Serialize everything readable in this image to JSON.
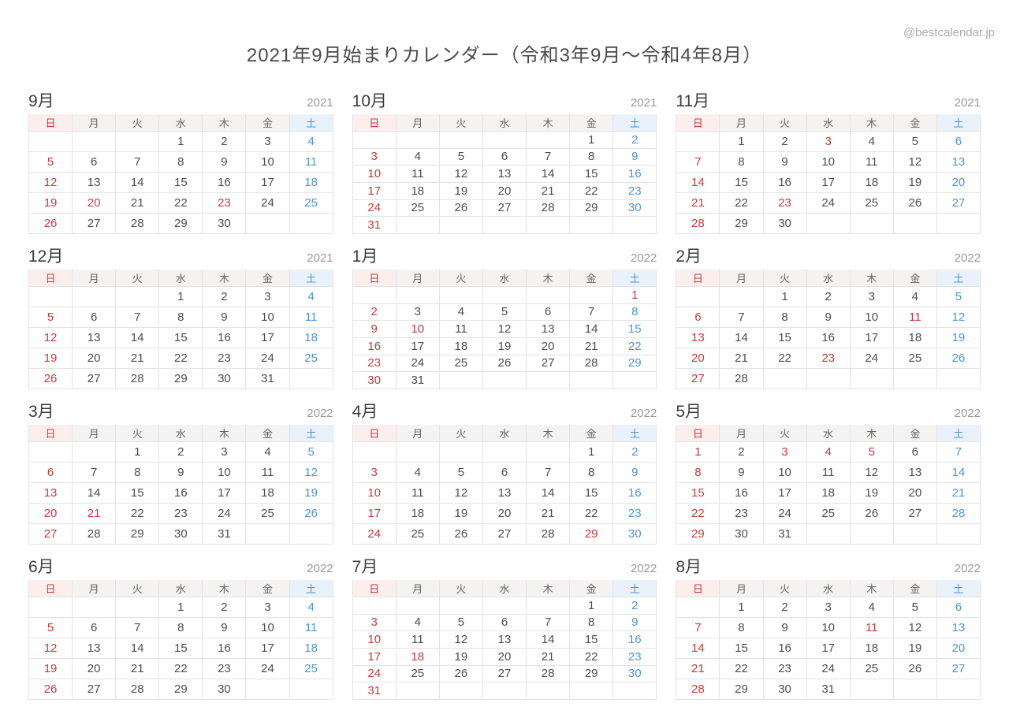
{
  "page": {
    "title": "2021年9月始まりカレンダー（令和3年9月～令和4年8月）",
    "watermark": "@bestcalendar.jp"
  },
  "weekday_headers": [
    "日",
    "月",
    "火",
    "水",
    "木",
    "金",
    "土"
  ],
  "colors": {
    "holiday_sunday_text": "#c43c3c",
    "saturday_text": "#4d94d6",
    "sunday_header_bg": "#fdeeee",
    "saturday_header_bg": "#e9f1fb",
    "weekday_header_bg": "#f5f3f1",
    "date_text": "#4d4d4d",
    "weekday_header_text": "#666666",
    "cell_border": "#e3e3e3"
  },
  "months": [
    {
      "name": "9月",
      "year": "2021",
      "weeks": [
        [
          "",
          "",
          "",
          1,
          2,
          3,
          4
        ],
        [
          5,
          6,
          7,
          8,
          9,
          10,
          11
        ],
        [
          12,
          13,
          14,
          15,
          16,
          17,
          18
        ],
        [
          19,
          20,
          21,
          22,
          23,
          24,
          25
        ],
        [
          26,
          27,
          28,
          29,
          30,
          "",
          ""
        ]
      ],
      "red_days": [
        5,
        12,
        19,
        20,
        23,
        26
      ],
      "blue_days": [
        4,
        11,
        18,
        25
      ]
    },
    {
      "name": "10月",
      "year": "2021",
      "weeks": [
        [
          "",
          "",
          "",
          "",
          "",
          1,
          2
        ],
        [
          3,
          4,
          5,
          6,
          7,
          8,
          9
        ],
        [
          10,
          11,
          12,
          13,
          14,
          15,
          16
        ],
        [
          17,
          18,
          19,
          20,
          21,
          22,
          23
        ],
        [
          24,
          25,
          26,
          27,
          28,
          29,
          30
        ],
        [
          31,
          "",
          "",
          "",
          "",
          "",
          ""
        ]
      ],
      "red_days": [
        3,
        10,
        17,
        24,
        31
      ],
      "blue_days": [
        2,
        9,
        16,
        23,
        30
      ]
    },
    {
      "name": "11月",
      "year": "2021",
      "weeks": [
        [
          "",
          1,
          2,
          3,
          4,
          5,
          6
        ],
        [
          7,
          8,
          9,
          10,
          11,
          12,
          13
        ],
        [
          14,
          15,
          16,
          17,
          18,
          19,
          20
        ],
        [
          21,
          22,
          23,
          24,
          25,
          26,
          27
        ],
        [
          28,
          29,
          30,
          "",
          "",
          "",
          ""
        ]
      ],
      "red_days": [
        3,
        7,
        14,
        21,
        23,
        28
      ],
      "blue_days": [
        6,
        13,
        20,
        27
      ]
    },
    {
      "name": "12月",
      "year": "2021",
      "weeks": [
        [
          "",
          "",
          "",
          1,
          2,
          3,
          4
        ],
        [
          5,
          6,
          7,
          8,
          9,
          10,
          11
        ],
        [
          12,
          13,
          14,
          15,
          16,
          17,
          18
        ],
        [
          19,
          20,
          21,
          22,
          23,
          24,
          25
        ],
        [
          26,
          27,
          28,
          29,
          30,
          31,
          ""
        ]
      ],
      "red_days": [
        5,
        12,
        19,
        26
      ],
      "blue_days": [
        4,
        11,
        18,
        25
      ]
    },
    {
      "name": "1月",
      "year": "2022",
      "weeks": [
        [
          "",
          "",
          "",
          "",
          "",
          "",
          1
        ],
        [
          2,
          3,
          4,
          5,
          6,
          7,
          8
        ],
        [
          9,
          10,
          11,
          12,
          13,
          14,
          15
        ],
        [
          16,
          17,
          18,
          19,
          20,
          21,
          22
        ],
        [
          23,
          24,
          25,
          26,
          27,
          28,
          29
        ],
        [
          30,
          31,
          "",
          "",
          "",
          "",
          ""
        ]
      ],
      "red_days": [
        1,
        2,
        9,
        10,
        16,
        23,
        30
      ],
      "blue_days": [
        8,
        15,
        22,
        29
      ]
    },
    {
      "name": "2月",
      "year": "2022",
      "weeks": [
        [
          "",
          "",
          1,
          2,
          3,
          4,
          5
        ],
        [
          6,
          7,
          8,
          9,
          10,
          11,
          12
        ],
        [
          13,
          14,
          15,
          16,
          17,
          18,
          19
        ],
        [
          20,
          21,
          22,
          23,
          24,
          25,
          26
        ],
        [
          27,
          28,
          "",
          "",
          "",
          "",
          ""
        ]
      ],
      "red_days": [
        6,
        11,
        13,
        20,
        23,
        27
      ],
      "blue_days": [
        5,
        12,
        19,
        26
      ]
    },
    {
      "name": "3月",
      "year": "2022",
      "weeks": [
        [
          "",
          "",
          1,
          2,
          3,
          4,
          5
        ],
        [
          6,
          7,
          8,
          9,
          10,
          11,
          12
        ],
        [
          13,
          14,
          15,
          16,
          17,
          18,
          19
        ],
        [
          20,
          21,
          22,
          23,
          24,
          25,
          26
        ],
        [
          27,
          28,
          29,
          30,
          31,
          "",
          ""
        ]
      ],
      "red_days": [
        6,
        13,
        20,
        21,
        27
      ],
      "blue_days": [
        5,
        12,
        19,
        26
      ]
    },
    {
      "name": "4月",
      "year": "2022",
      "weeks": [
        [
          "",
          "",
          "",
          "",
          "",
          1,
          2
        ],
        [
          3,
          4,
          5,
          6,
          7,
          8,
          9
        ],
        [
          10,
          11,
          12,
          13,
          14,
          15,
          16
        ],
        [
          17,
          18,
          19,
          20,
          21,
          22,
          23
        ],
        [
          24,
          25,
          26,
          27,
          28,
          29,
          30
        ]
      ],
      "red_days": [
        3,
        10,
        17,
        24,
        29
      ],
      "blue_days": [
        2,
        9,
        16,
        23,
        30
      ]
    },
    {
      "name": "5月",
      "year": "2022",
      "weeks": [
        [
          1,
          2,
          3,
          4,
          5,
          6,
          7
        ],
        [
          8,
          9,
          10,
          11,
          12,
          13,
          14
        ],
        [
          15,
          16,
          17,
          18,
          19,
          20,
          21
        ],
        [
          22,
          23,
          24,
          25,
          26,
          27,
          28
        ],
        [
          29,
          30,
          31,
          "",
          "",
          "",
          ""
        ]
      ],
      "red_days": [
        1,
        3,
        4,
        5,
        8,
        15,
        22,
        29
      ],
      "blue_days": [
        7,
        14,
        21,
        28
      ]
    },
    {
      "name": "6月",
      "year": "2022",
      "weeks": [
        [
          "",
          "",
          "",
          1,
          2,
          3,
          4
        ],
        [
          5,
          6,
          7,
          8,
          9,
          10,
          11
        ],
        [
          12,
          13,
          14,
          15,
          16,
          17,
          18
        ],
        [
          19,
          20,
          21,
          22,
          23,
          24,
          25
        ],
        [
          26,
          27,
          28,
          29,
          30,
          "",
          ""
        ]
      ],
      "red_days": [
        5,
        12,
        19,
        26
      ],
      "blue_days": [
        4,
        11,
        18,
        25
      ]
    },
    {
      "name": "7月",
      "year": "2022",
      "weeks": [
        [
          "",
          "",
          "",
          "",
          "",
          1,
          2
        ],
        [
          3,
          4,
          5,
          6,
          7,
          8,
          9
        ],
        [
          10,
          11,
          12,
          13,
          14,
          15,
          16
        ],
        [
          17,
          18,
          19,
          20,
          21,
          22,
          23
        ],
        [
          24,
          25,
          26,
          27,
          28,
          29,
          30
        ],
        [
          31,
          "",
          "",
          "",
          "",
          "",
          ""
        ]
      ],
      "red_days": [
        3,
        10,
        17,
        18,
        24,
        31
      ],
      "blue_days": [
        2,
        9,
        16,
        23,
        30
      ]
    },
    {
      "name": "8月",
      "year": "2022",
      "weeks": [
        [
          "",
          1,
          2,
          3,
          4,
          5,
          6
        ],
        [
          7,
          8,
          9,
          10,
          11,
          12,
          13
        ],
        [
          14,
          15,
          16,
          17,
          18,
          19,
          20
        ],
        [
          21,
          22,
          23,
          24,
          25,
          26,
          27
        ],
        [
          28,
          29,
          30,
          31,
          "",
          "",
          ""
        ]
      ],
      "red_days": [
        7,
        11,
        14,
        21,
        28
      ],
      "blue_days": [
        6,
        13,
        20,
        27
      ]
    }
  ]
}
